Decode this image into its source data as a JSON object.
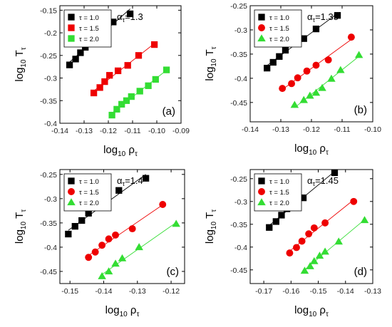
{
  "chart_data": [
    {
      "type": "scatter",
      "panel_label": "(a)",
      "annotation": {
        "symbol": "α",
        "subscript": "τ",
        "value": "=1.3"
      },
      "xlabel": {
        "base": "log",
        "base_sub": "10",
        "symbol": "ρ",
        "symbol_sub": "τ"
      },
      "ylabel": {
        "base": "log",
        "base_sub": "10",
        "symbol": "T",
        "symbol_sub": "τ"
      },
      "xlim": [
        -0.14,
        -0.09
      ],
      "ylim": [
        -0.4,
        -0.14
      ],
      "xticks": [
        -0.14,
        -0.13,
        -0.12,
        -0.11,
        -0.1,
        -0.09
      ],
      "yticks": [
        -0.4,
        -0.35,
        -0.3,
        -0.25,
        -0.2,
        -0.15
      ],
      "xtick_labels": [
        "-0.14",
        "-0.13",
        "-0.12",
        "-0.11",
        "-0.10",
        "-0.09"
      ],
      "ytick_labels": [
        "-0.4",
        "-0.35",
        "-0.3",
        "-0.25",
        "-0.2",
        "-0.15"
      ],
      "legend_position": "top-left",
      "series": [
        {
          "name": "τ = 1.0",
          "color": "#000000",
          "marker": "square",
          "x": [
            -0.136,
            -0.1335,
            -0.1315,
            -0.1295,
            -0.1265,
            -0.1245,
            -0.122,
            -0.118,
            -0.111
          ],
          "y": [
            -0.271,
            -0.258,
            -0.244,
            -0.232,
            -0.218,
            -0.205,
            -0.191,
            -0.176,
            -0.158
          ]
        },
        {
          "name": "τ = 1.5",
          "color": "#ee0000",
          "marker": "square",
          "x": [
            -0.126,
            -0.1235,
            -0.1215,
            -0.1195,
            -0.116,
            -0.112,
            -0.1075,
            -0.101
          ],
          "y": [
            -0.333,
            -0.321,
            -0.308,
            -0.294,
            -0.284,
            -0.272,
            -0.25,
            -0.226
          ]
        },
        {
          "name": "τ = 2.0",
          "color": "#33dd33",
          "marker": "square",
          "x": [
            -0.1185,
            -0.1165,
            -0.1145,
            -0.1125,
            -0.1105,
            -0.107,
            -0.1035,
            -0.1005,
            -0.096
          ],
          "y": [
            -0.382,
            -0.369,
            -0.358,
            -0.35,
            -0.341,
            -0.329,
            -0.317,
            -0.303,
            -0.282
          ]
        }
      ]
    },
    {
      "type": "scatter",
      "panel_label": "(b)",
      "annotation": {
        "symbol": "α",
        "subscript": "τ",
        "value": "=1.35"
      },
      "xlabel": {
        "base": "log",
        "base_sub": "10",
        "symbol": "ρ",
        "symbol_sub": "τ"
      },
      "ylabel": {
        "base": "log",
        "base_sub": "10",
        "symbol": "T",
        "symbol_sub": "τ"
      },
      "xlim": [
        -0.14,
        -0.1
      ],
      "ylim": [
        -0.49,
        -0.25
      ],
      "xticks": [
        -0.14,
        -0.13,
        -0.12,
        -0.11,
        -0.1
      ],
      "yticks": [
        -0.45,
        -0.4,
        -0.35,
        -0.3,
        -0.25
      ],
      "xtick_labels": [
        "-0.14",
        "-0.13",
        "-0.12",
        "-0.11",
        "-0.10"
      ],
      "ytick_labels": [
        "-0.45",
        "-0.4",
        "-0.35",
        "-0.3",
        "-0.25"
      ],
      "legend_position": "top-left",
      "series": [
        {
          "name": "τ = 1.0",
          "color": "#000000",
          "marker": "square",
          "x": [
            -0.1345,
            -0.1325,
            -0.1305,
            -0.1285,
            -0.1265,
            -0.1225,
            -0.1185,
            -0.1115
          ],
          "y": [
            -0.379,
            -0.367,
            -0.355,
            -0.342,
            -0.328,
            -0.318,
            -0.298,
            -0.27
          ]
        },
        {
          "name": "τ = 1.5",
          "color": "#ee0000",
          "marker": "circle",
          "x": [
            -0.1295,
            -0.1265,
            -0.1245,
            -0.1215,
            -0.1185,
            -0.1145,
            -0.107
          ],
          "y": [
            -0.421,
            -0.411,
            -0.399,
            -0.385,
            -0.373,
            -0.362,
            -0.315
          ]
        },
        {
          "name": "τ = 2.0",
          "color": "#33dd33",
          "marker": "triangle",
          "x": [
            -0.1255,
            -0.1225,
            -0.1205,
            -0.1185,
            -0.1165,
            -0.1135,
            -0.1105,
            -0.1045
          ],
          "y": [
            -0.455,
            -0.445,
            -0.436,
            -0.43,
            -0.42,
            -0.401,
            -0.383,
            -0.352
          ]
        }
      ]
    },
    {
      "type": "scatter",
      "panel_label": "(c)",
      "annotation": {
        "symbol": "α",
        "subscript": "τ",
        "value": "=1.4"
      },
      "xlabel": {
        "base": "log",
        "base_sub": "10",
        "symbol": "ρ",
        "symbol_sub": "τ"
      },
      "ylabel": {
        "base": "log",
        "base_sub": "10",
        "symbol": "T",
        "symbol_sub": "τ"
      },
      "xlim": [
        -0.153,
        -0.116
      ],
      "ylim": [
        -0.475,
        -0.24
      ],
      "xticks": [
        -0.15,
        -0.14,
        -0.13,
        -0.12
      ],
      "yticks": [
        -0.45,
        -0.4,
        -0.35,
        -0.3,
        -0.25
      ],
      "xtick_labels": [
        "-0.15",
        "-0.14",
        "-0.13",
        "-0.12"
      ],
      "ytick_labels": [
        "-0.45",
        "-0.4",
        "-0.35",
        "-0.3",
        "-0.25"
      ],
      "legend_position": "top-left",
      "series": [
        {
          "name": "τ = 1.0",
          "color": "#000000",
          "marker": "square",
          "x": [
            -0.1505,
            -0.1485,
            -0.1465,
            -0.1445,
            -0.1405,
            -0.1355,
            -0.1275
          ],
          "y": [
            -0.373,
            -0.357,
            -0.345,
            -0.33,
            -0.31,
            -0.283,
            -0.258
          ]
        },
        {
          "name": "τ = 1.5",
          "color": "#ee0000",
          "marker": "circle",
          "x": [
            -0.1445,
            -0.1425,
            -0.1405,
            -0.1385,
            -0.1365,
            -0.1315,
            -0.1225
          ],
          "y": [
            -0.421,
            -0.41,
            -0.396,
            -0.383,
            -0.375,
            -0.362,
            -0.312
          ]
        },
        {
          "name": "τ = 2.0",
          "color": "#33dd33",
          "marker": "triangle",
          "x": [
            -0.1405,
            -0.1385,
            -0.1365,
            -0.1345,
            -0.1295,
            -0.1185
          ],
          "y": [
            -0.46,
            -0.45,
            -0.434,
            -0.423,
            -0.4,
            -0.352
          ]
        }
      ]
    },
    {
      "type": "scatter",
      "panel_label": "(d)",
      "annotation": {
        "symbol": "α",
        "subscript": "τ",
        "value": "=1.45"
      },
      "xlabel": {
        "base": "log",
        "base_sub": "10",
        "symbol": "ρ",
        "symbol_sub": "τ"
      },
      "ylabel": {
        "base": "log",
        "base_sub": "10",
        "symbol": "T",
        "symbol_sub": "τ"
      },
      "xlim": [
        -0.175,
        -0.13
      ],
      "ylim": [
        -0.48,
        -0.23
      ],
      "xticks": [
        -0.17,
        -0.16,
        -0.15,
        -0.14,
        -0.13
      ],
      "yticks": [
        -0.45,
        -0.4,
        -0.35,
        -0.3,
        -0.25
      ],
      "xtick_labels": [
        "-0.17",
        "-0.16",
        "-0.15",
        "-0.14",
        "-0.13"
      ],
      "ytick_labels": [
        "-0.45",
        "-0.4",
        "-0.35",
        "-0.3",
        "-0.25"
      ],
      "legend_position": "top-left",
      "series": [
        {
          "name": "τ = 1.0",
          "color": "#000000",
          "marker": "square",
          "x": [
            -0.168,
            -0.1655,
            -0.1635,
            -0.1615,
            -0.1595,
            -0.1555,
            -0.144
          ],
          "y": [
            -0.357,
            -0.344,
            -0.33,
            -0.316,
            -0.304,
            -0.292,
            -0.237
          ]
        },
        {
          "name": "τ = 1.5",
          "color": "#ee0000",
          "marker": "circle",
          "x": [
            -0.1605,
            -0.158,
            -0.156,
            -0.1535,
            -0.1515,
            -0.1475,
            -0.137
          ],
          "y": [
            -0.413,
            -0.401,
            -0.387,
            -0.371,
            -0.358,
            -0.347,
            -0.3
          ]
        },
        {
          "name": "τ = 2.0",
          "color": "#33dd33",
          "marker": "triangle",
          "x": [
            -0.155,
            -0.153,
            -0.1515,
            -0.1495,
            -0.1475,
            -0.1425,
            -0.133
          ],
          "y": [
            -0.452,
            -0.442,
            -0.431,
            -0.419,
            -0.41,
            -0.388,
            -0.341
          ]
        }
      ]
    }
  ]
}
